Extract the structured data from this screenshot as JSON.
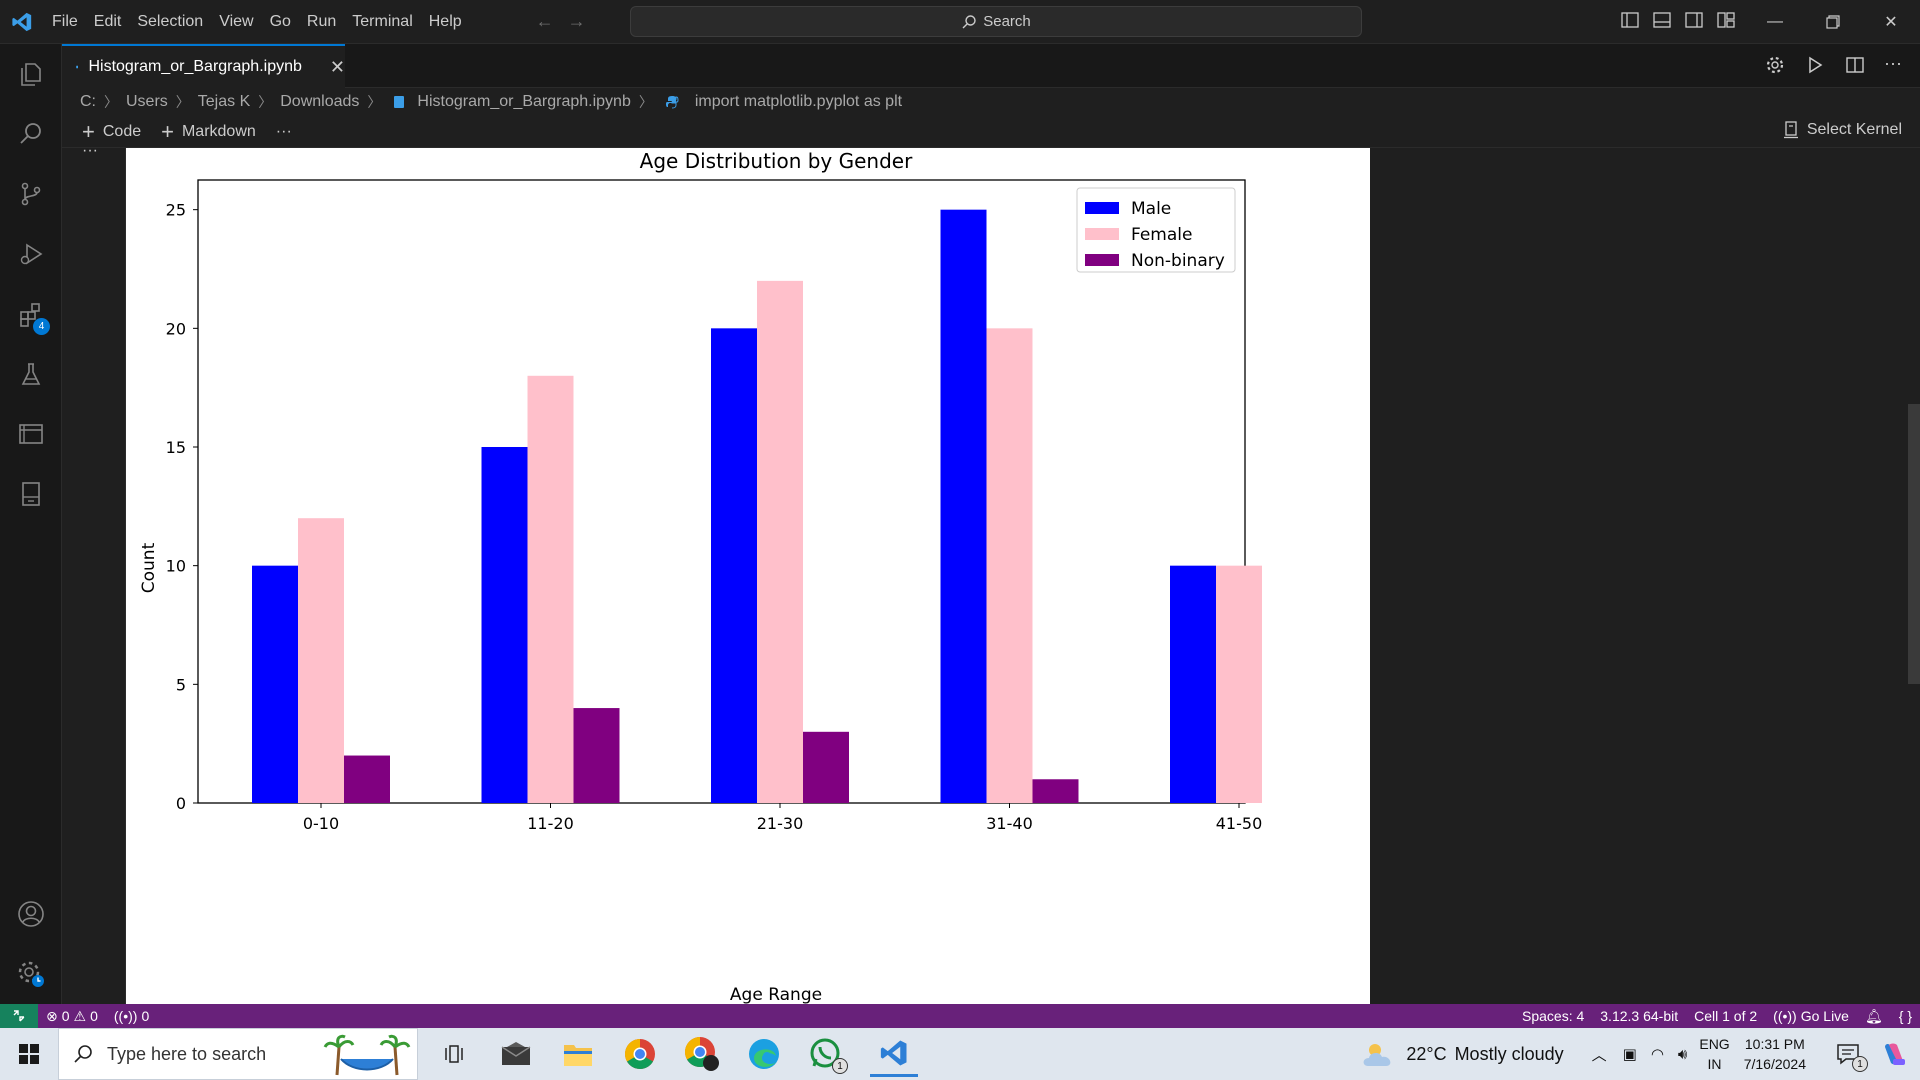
{
  "menu": [
    "File",
    "Edit",
    "Selection",
    "View",
    "Go",
    "Run",
    "Terminal",
    "Help"
  ],
  "search": {
    "label": "Search"
  },
  "tab": {
    "filename": "Histogram_or_Bargraph.ipynb"
  },
  "breadcrumb": {
    "parts": [
      "C:",
      "Users",
      "Tejas K",
      "Downloads"
    ],
    "file": "Histogram_or_Bargraph.ipynb",
    "cell": "import matplotlib.pyplot as plt"
  },
  "toolbar": {
    "code_label": "Code",
    "markdown_label": "Markdown",
    "more_label": "···",
    "kernel_label": "Select Kernel"
  },
  "activity": {
    "extensions_badge": "4"
  },
  "chart_data": {
    "type": "bar",
    "title": "Age Distribution by Gender",
    "xlabel": "Age Range",
    "ylabel": "Count",
    "categories": [
      "0-10",
      "11-20",
      "21-30",
      "31-40",
      "41-50"
    ],
    "series": [
      {
        "name": "Male",
        "values": [
          10,
          15,
          20,
          25,
          10
        ],
        "color": "#0000ff"
      },
      {
        "name": "Female",
        "values": [
          12,
          18,
          22,
          20,
          10
        ],
        "color": "#ffc0cb"
      },
      {
        "name": "Non-binary",
        "values": [
          2,
          4,
          3,
          1,
          0
        ],
        "color": "#800080"
      }
    ],
    "ylim": [
      0,
      26.25
    ],
    "yticks": [
      0,
      5,
      10,
      15,
      20,
      25
    ],
    "legend": "top-right",
    "grid": false
  },
  "status": {
    "errors": "0",
    "warnings": "0",
    "ports": "0",
    "spaces": "Spaces: 4",
    "python": "3.12.3 64-bit",
    "cell": "Cell 1 of 2",
    "golive": "Go Live"
  },
  "taskbar": {
    "search_placeholder": "Type here to search",
    "whatsapp_badge": "1",
    "temperature": "22°C",
    "weather": "Mostly cloudy",
    "lang": "ENG",
    "region": "IN",
    "time": "10:31 PM",
    "date": "7/16/2024",
    "notif_badge": "1"
  }
}
